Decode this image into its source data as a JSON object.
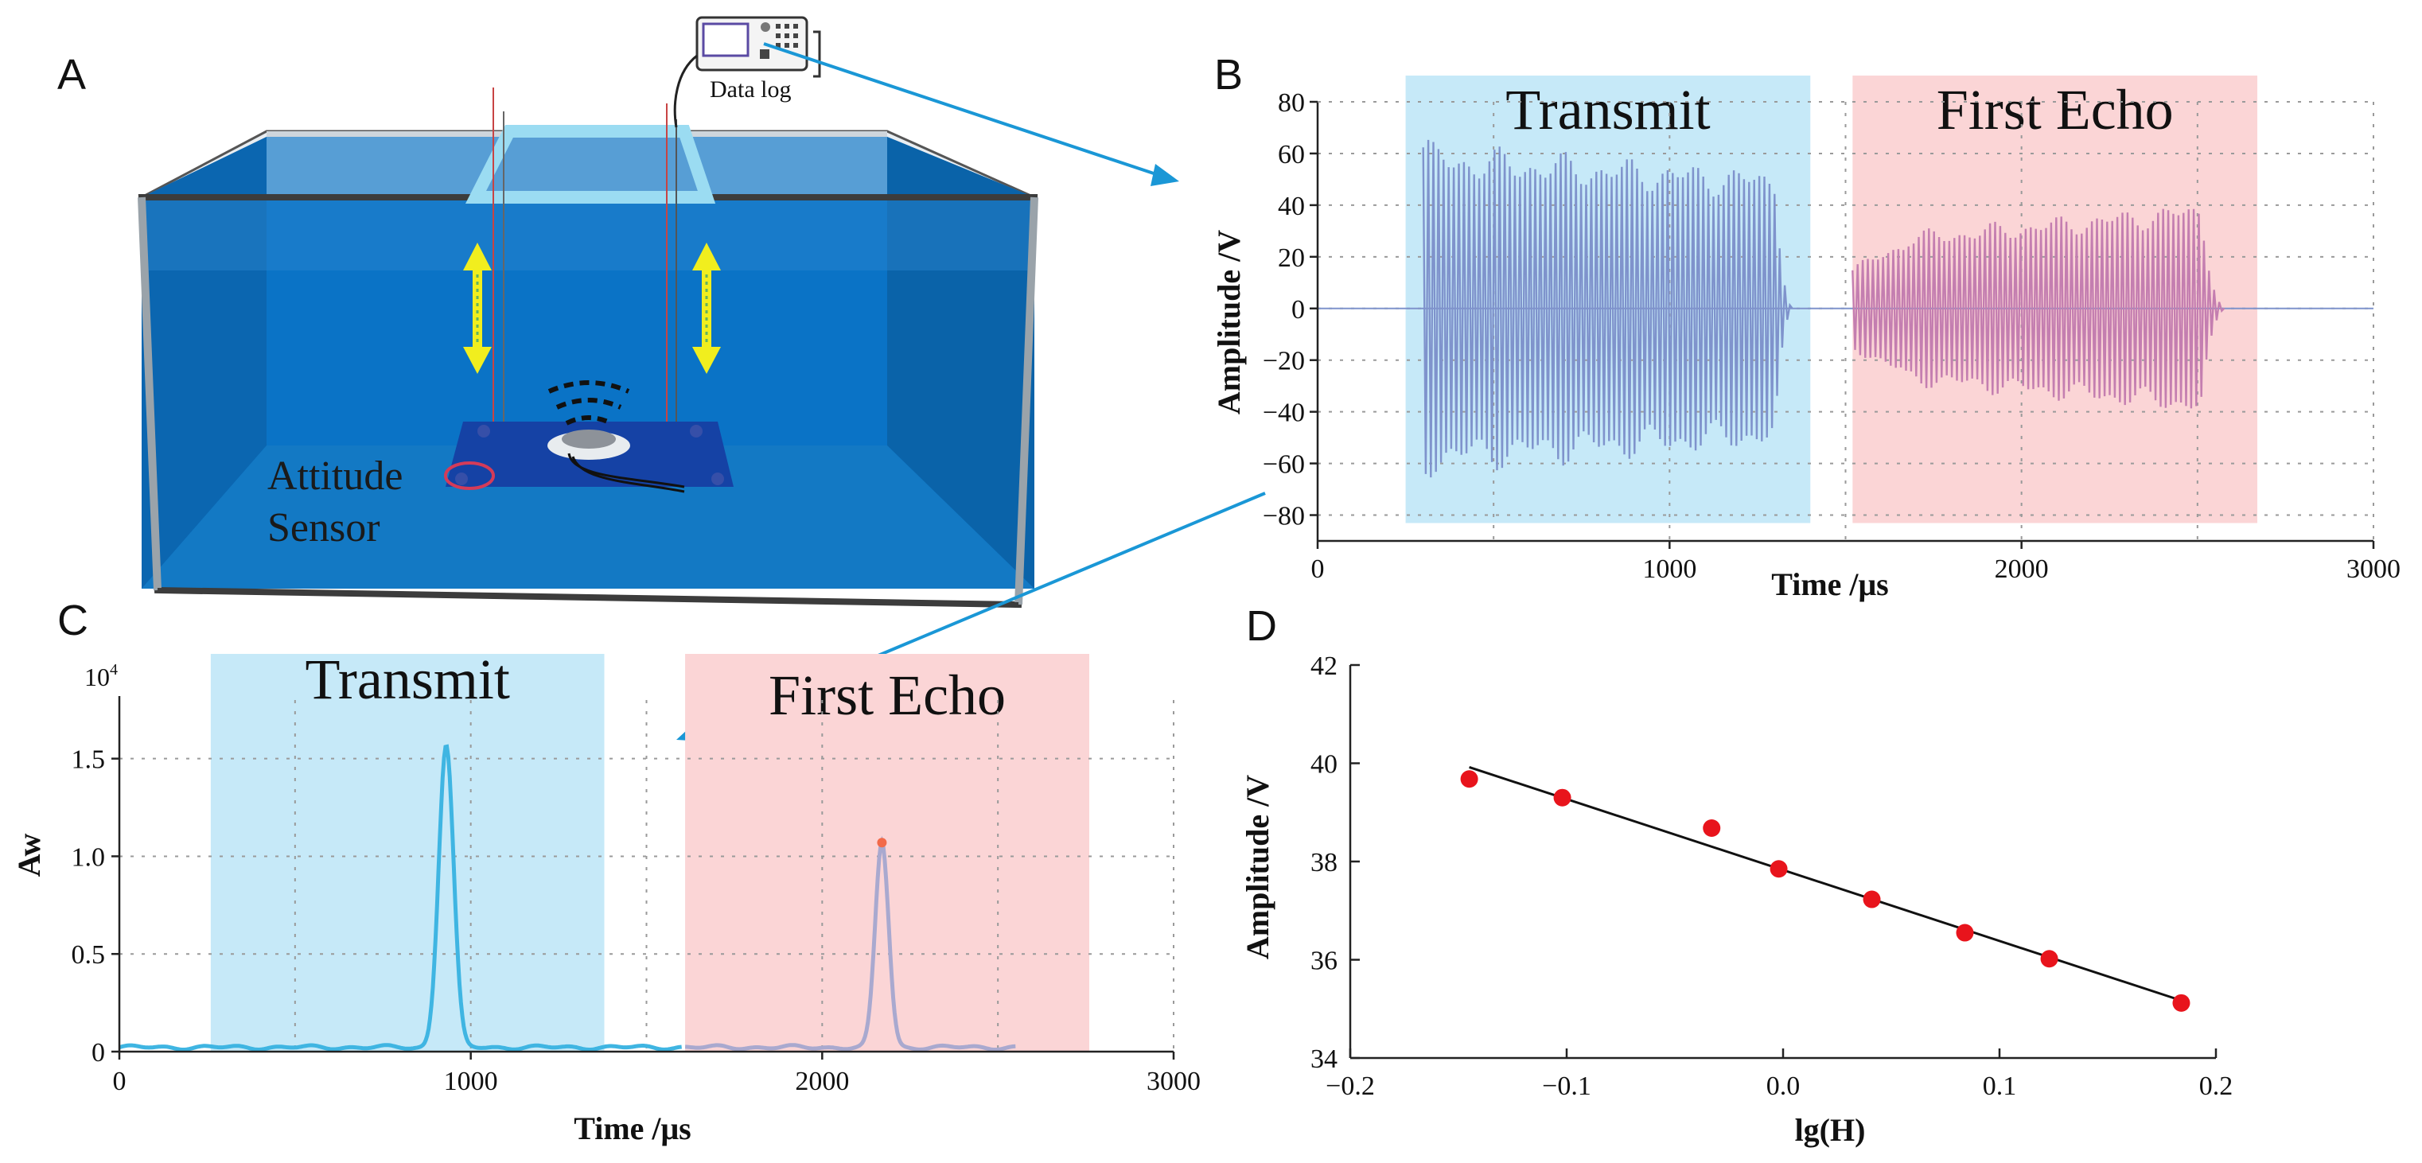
{
  "panels": {
    "A": {
      "letter": "A",
      "device_label": "Data log",
      "sensor_label_line1": "Attitude",
      "sensor_label_line2": "Sensor"
    },
    "B": {
      "letter": "B"
    },
    "C": {
      "letter": "C"
    },
    "D": {
      "letter": "D"
    }
  },
  "colors": {
    "water": "#0a73c6",
    "transmit_band": "#c6e9f8",
    "echo_band": "#fbd5d6",
    "transmit_signal": "#7f93cc",
    "echo_signal": "#c47eb0",
    "transmit_peak": "#3fb5e2",
    "echo_peak": "#a9a9cf",
    "points": "#e8141c",
    "arrow": "#1a97d6"
  },
  "chart_data": [
    {
      "id": "B",
      "type": "line",
      "xlabel": "Time /μs",
      "ylabel": "Amplitude /V",
      "xlim": [
        0,
        3000
      ],
      "ylim": [
        -90,
        80
      ],
      "xticks": [
        "0",
        "1000",
        "2000",
        "3000"
      ],
      "yticks": [
        "80",
        "60",
        "40",
        "20",
        "0",
        "−20",
        "−40",
        "−60",
        "−80"
      ],
      "ytick_values": [
        80,
        60,
        40,
        20,
        0,
        -20,
        -40,
        -60,
        -80
      ],
      "xtick_values": [
        0,
        1000,
        2000,
        3000
      ],
      "grid": true,
      "bands": [
        {
          "label": "Transmit",
          "x0": 250,
          "x1": 1400
        },
        {
          "label": "First Echo",
          "x0": 1520,
          "x1": 2670
        }
      ],
      "series": [
        {
          "name": "transmit burst",
          "x_start": 300,
          "x_end": 1300,
          "envelope_start": 65,
          "envelope_end": 55,
          "tail_end": 1350
        },
        {
          "name": "first echo",
          "x_start": 1520,
          "x_end": 2510,
          "envelope_start": 28,
          "envelope_end": 42,
          "tail_end": 2580
        }
      ]
    },
    {
      "id": "C",
      "type": "line",
      "xlabel": "Time /μs",
      "ylabel": "Aw",
      "exponent_label": "10",
      "exponent_power": "4",
      "xlim": [
        0,
        3000
      ],
      "ylim": [
        0,
        1.8
      ],
      "xticks": [
        "0",
        "1000",
        "2000",
        "3000"
      ],
      "yticks": [
        "1.5",
        "1.0",
        "0.5",
        "0"
      ],
      "ytick_values": [
        1.5,
        1.0,
        0.5,
        0
      ],
      "xtick_values": [
        0,
        1000,
        2000,
        3000
      ],
      "grid": true,
      "bands": [
        {
          "label": "Transmit",
          "x0": 260,
          "x1": 1380
        },
        {
          "label": "First Echo",
          "x0": 1610,
          "x1": 2760
        }
      ],
      "series": [
        {
          "name": "transmit correlation",
          "peak_x": 930,
          "peak_y": 1.55,
          "width": 30,
          "x_from": 0,
          "x_to": 1600
        },
        {
          "name": "echo correlation",
          "peak_x": 2170,
          "peak_y": 1.05,
          "width": 27,
          "x_from": 1610,
          "x_to": 2550
        }
      ],
      "marker": {
        "x": 2170,
        "y": 1.07
      }
    },
    {
      "id": "D",
      "type": "scatter",
      "xlabel": "lg(H)",
      "ylabel": "Amplitude /V",
      "xlim": [
        -0.2,
        0.2
      ],
      "ylim": [
        34,
        42
      ],
      "xticks": [
        "−0.2",
        "−0.1",
        "0.0",
        "0.1",
        "0.2"
      ],
      "xtick_values": [
        -0.2,
        -0.1,
        0.0,
        0.1,
        0.2
      ],
      "yticks": [
        "42",
        "40",
        "38",
        "36",
        "34"
      ],
      "ytick_values": [
        42,
        40,
        38,
        36,
        34
      ],
      "grid": false,
      "points": [
        {
          "x": -0.145,
          "y": 39.68
        },
        {
          "x": -0.102,
          "y": 39.3
        },
        {
          "x": -0.033,
          "y": 38.68
        },
        {
          "x": -0.002,
          "y": 37.85
        },
        {
          "x": 0.041,
          "y": 37.23
        },
        {
          "x": 0.084,
          "y": 36.55
        },
        {
          "x": 0.123,
          "y": 36.02
        },
        {
          "x": 0.184,
          "y": 35.12
        }
      ],
      "fit_line": {
        "x0": -0.145,
        "y0": 39.92,
        "x1": 0.184,
        "y1": 35.17
      }
    }
  ]
}
